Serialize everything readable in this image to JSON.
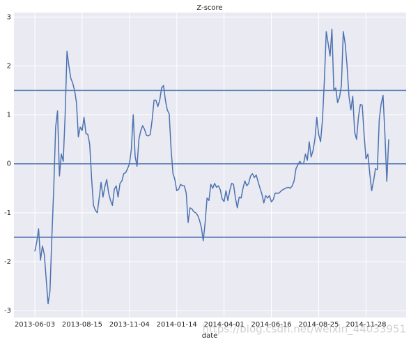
{
  "chart_data": {
    "type": "line",
    "title": "Z-score",
    "x_label": "date",
    "watermark": "https://blog.csdn.net/weixin_44033951",
    "color": "#4c72b0",
    "background": "#eaeaf2",
    "grid": true,
    "ylim": [
      -3.14,
      3.09
    ],
    "yticks": [
      -3,
      -2,
      -1,
      0,
      1,
      2,
      3
    ],
    "hlines": [
      -1.5,
      0,
      1.5
    ],
    "categories": [
      "2013-06-03",
      null,
      null,
      null,
      null,
      null,
      null,
      null,
      null,
      null,
      null,
      null,
      null,
      null,
      null,
      null,
      null,
      null,
      null,
      null,
      null,
      null,
      null,
      null,
      null,
      "2013-08-15",
      null,
      null,
      null,
      null,
      null,
      null,
      null,
      null,
      null,
      null,
      null,
      null,
      null,
      null,
      null,
      null,
      null,
      null,
      null,
      null,
      null,
      null,
      null,
      null,
      "2013-11-04",
      null,
      null,
      null,
      null,
      null,
      null,
      null,
      null,
      null,
      null,
      null,
      null,
      null,
      null,
      null,
      null,
      null,
      null,
      null,
      null,
      null,
      null,
      null,
      null,
      "2014-01-14",
      null,
      null,
      null,
      null,
      null,
      null,
      null,
      null,
      null,
      null,
      null,
      null,
      null,
      null,
      null,
      null,
      null,
      null,
      null,
      null,
      null,
      null,
      null,
      null,
      "2014-04-01",
      null,
      null,
      null,
      null,
      null,
      null,
      null,
      null,
      null,
      null,
      null,
      null,
      null,
      null,
      null,
      null,
      null,
      null,
      null,
      null,
      null,
      null,
      null,
      null,
      "2014-06-16",
      null,
      null,
      null,
      null,
      null,
      null,
      null,
      null,
      null,
      null,
      null,
      null,
      null,
      null,
      null,
      null,
      null,
      null,
      null,
      null,
      null,
      null,
      null,
      null,
      "2014-08-25",
      null,
      null,
      null,
      null,
      null,
      null,
      null,
      null,
      null,
      null,
      null,
      null,
      null,
      null,
      null,
      null,
      null,
      null,
      null,
      null,
      null,
      null,
      null,
      null,
      "2014-11-28",
      null,
      null,
      null,
      null,
      null,
      null,
      null,
      null,
      null,
      null,
      null,
      null
    ],
    "values": [
      -1.79,
      -1.6,
      -1.33,
      -1.97,
      -1.68,
      -1.85,
      -2.35,
      -2.86,
      -2.6,
      -1.5,
      -0.5,
      0.75,
      1.08,
      -0.25,
      0.2,
      0.05,
      0.98,
      2.3,
      2.0,
      1.75,
      1.65,
      1.5,
      1.25,
      0.55,
      0.75,
      0.68,
      0.95,
      0.62,
      0.6,
      0.4,
      -0.3,
      -0.85,
      -0.95,
      -1.0,
      -0.7,
      -0.38,
      -0.68,
      -0.47,
      -0.32,
      -0.6,
      -0.75,
      -0.85,
      -0.52,
      -0.45,
      -0.68,
      -0.4,
      -0.35,
      -0.2,
      -0.18,
      -0.1,
      0.0,
      0.3,
      1.0,
      0.15,
      -0.05,
      0.5,
      0.68,
      0.78,
      0.7,
      0.58,
      0.57,
      0.6,
      0.9,
      1.3,
      1.3,
      1.17,
      1.3,
      1.55,
      1.6,
      1.3,
      1.1,
      1.02,
      0.3,
      -0.2,
      -0.32,
      -0.55,
      -0.52,
      -0.42,
      -0.45,
      -0.45,
      -0.6,
      -1.2,
      -0.9,
      -0.92,
      -0.98,
      -1.0,
      -1.05,
      -1.15,
      -1.3,
      -1.57,
      -1.2,
      -0.7,
      -0.75,
      -0.42,
      -0.5,
      -0.4,
      -0.48,
      -0.45,
      -0.53,
      -0.72,
      -0.77,
      -0.55,
      -0.75,
      -0.55,
      -0.4,
      -0.42,
      -0.7,
      -0.9,
      -0.68,
      -0.7,
      -0.5,
      -0.35,
      -0.45,
      -0.4,
      -0.25,
      -0.2,
      -0.28,
      -0.23,
      -0.37,
      -0.5,
      -0.62,
      -0.8,
      -0.65,
      -0.7,
      -0.65,
      -0.78,
      -0.73,
      -0.6,
      -0.6,
      -0.6,
      -0.56,
      -0.53,
      -0.51,
      -0.49,
      -0.48,
      -0.5,
      -0.45,
      -0.35,
      -0.1,
      -0.02,
      0.05,
      0.0,
      0.0,
      0.2,
      0.07,
      0.45,
      0.14,
      0.27,
      0.5,
      0.95,
      0.6,
      0.45,
      0.9,
      1.7,
      2.7,
      2.46,
      2.2,
      2.75,
      1.5,
      1.55,
      1.25,
      1.36,
      1.6,
      2.7,
      2.45,
      2.0,
      1.38,
      1.1,
      1.38,
      0.65,
      0.5,
      0.95,
      1.21,
      1.2,
      0.6,
      0.1,
      0.2,
      -0.2,
      -0.55,
      -0.35,
      -0.1,
      -0.12,
      0.9,
      1.22,
      1.4,
      0.6,
      -0.36,
      0.5
    ]
  }
}
